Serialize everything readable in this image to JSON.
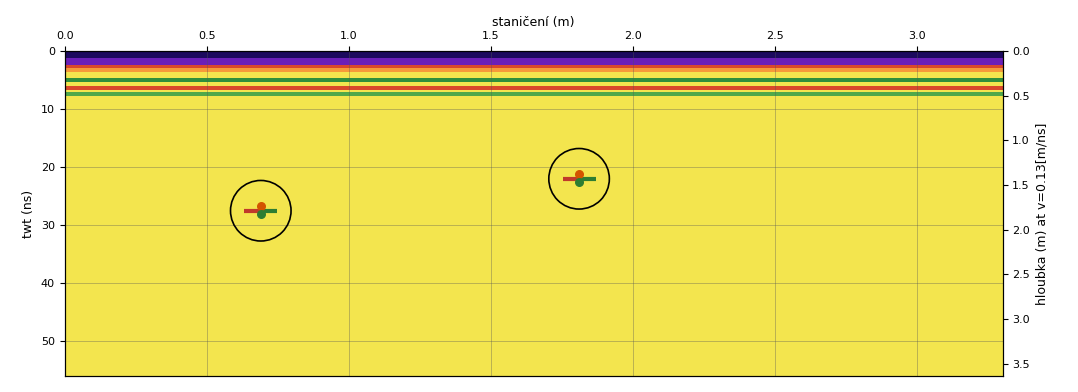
{
  "chart_data": {
    "type": "radargram",
    "x_label": "staničení (m)",
    "y_label": "twt (ns)",
    "y2_label": "hloubka (m) at v=0.13[m/ns]",
    "color": "#f3e54e",
    "xlim": [
      0.0,
      3.3
    ],
    "xticks": [
      0.0,
      0.5,
      1.0,
      1.5,
      2.0,
      2.5,
      3.0
    ],
    "ylim": [
      56,
      0
    ],
    "yticks": [
      0,
      10,
      20,
      30,
      40,
      50
    ],
    "y2lim": [
      3.64,
      0.0
    ],
    "y2ticks": [
      0.0,
      0.5,
      1.0,
      1.5,
      2.0,
      2.5,
      3.0,
      3.5
    ],
    "reflectors": [
      {
        "twt_top": 0.0,
        "twt_bottom": 1.2,
        "color": "#1c0a5e"
      },
      {
        "twt_top": 1.2,
        "twt_bottom": 2.4,
        "color": "#6a1fb8"
      },
      {
        "twt_top": 2.4,
        "twt_bottom": 3.0,
        "color": "#d9482b"
      },
      {
        "twt_top": 3.0,
        "twt_bottom": 3.6,
        "color": "#f59a3a"
      },
      {
        "twt_top": 4.6,
        "twt_bottom": 5.4,
        "color": "#2f8f3c"
      },
      {
        "twt_top": 6.0,
        "twt_bottom": 6.7,
        "color": "#d9482b"
      },
      {
        "twt_top": 7.1,
        "twt_bottom": 7.7,
        "color": "#4fa84a"
      }
    ],
    "targets": [
      {
        "x": 0.69,
        "twt": 27.5
      },
      {
        "x": 1.81,
        "twt": 22.0
      }
    ]
  }
}
